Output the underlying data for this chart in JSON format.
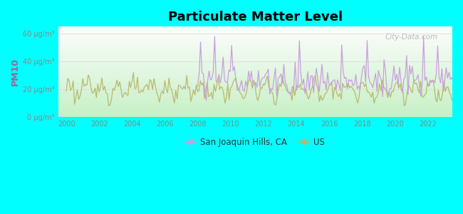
{
  "title": "Particulate Matter Level",
  "ylabel": "PM10",
  "background_color": "#00FFFF",
  "ylim": [
    0,
    65
  ],
  "yticks": [
    0,
    20,
    40,
    60
  ],
  "ytick_labels": [
    "0 μg/m³",
    "20 μg/m³",
    "40 μg/m³",
    "60 μg/m³"
  ],
  "xticks": [
    2000,
    2002,
    2004,
    2006,
    2008,
    2010,
    2012,
    2014,
    2016,
    2018,
    2020,
    2022
  ],
  "xlim": [
    1999.5,
    2023.5
  ],
  "sjh_color": "#c9a0dc",
  "us_color": "#b8ba6a",
  "sjh_label": "San Joaquin Hills, CA",
  "us_label": "US",
  "watermark": "City-Data.com",
  "ylabel_color": "#996699",
  "tick_color": "#888888",
  "grid_color": "#dddddd",
  "plot_bg_top": "#f5fff5",
  "plot_bg_bottom": "#c8f0c8"
}
